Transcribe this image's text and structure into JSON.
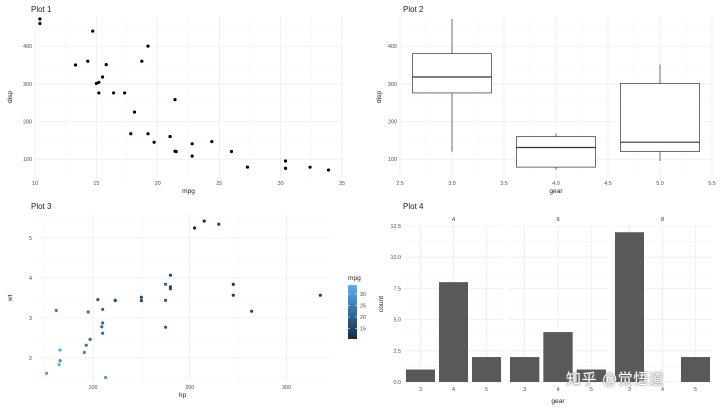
{
  "chart_data": [
    {
      "type": "scatter",
      "title": "Plot 1",
      "xlabel": "mpg",
      "ylabel": "disp",
      "xlim": [
        10,
        35
      ],
      "ylim": [
        50,
        480
      ],
      "xticks": [
        10,
        15,
        20,
        25,
        30,
        35
      ],
      "yticks": [
        100,
        200,
        300,
        400
      ],
      "point_color": "#000000",
      "points": [
        [
          21.0,
          160
        ],
        [
          21.0,
          160
        ],
        [
          22.8,
          108
        ],
        [
          21.4,
          258
        ],
        [
          18.7,
          360
        ],
        [
          18.1,
          225
        ],
        [
          14.3,
          360
        ],
        [
          24.4,
          146.7
        ],
        [
          22.8,
          140.8
        ],
        [
          19.2,
          167.6
        ],
        [
          17.8,
          167.6
        ],
        [
          16.4,
          275.8
        ],
        [
          17.3,
          275.8
        ],
        [
          15.2,
          275.8
        ],
        [
          10.4,
          472
        ],
        [
          10.4,
          460
        ],
        [
          14.7,
          440
        ],
        [
          32.4,
          78.7
        ],
        [
          30.4,
          75.7
        ],
        [
          33.9,
          71.1
        ],
        [
          21.5,
          120.1
        ],
        [
          15.5,
          318
        ],
        [
          15.2,
          304
        ],
        [
          13.3,
          350
        ],
        [
          19.2,
          400
        ],
        [
          27.3,
          79
        ],
        [
          26.0,
          120.3
        ],
        [
          30.4,
          95.1
        ],
        [
          15.8,
          351
        ],
        [
          19.7,
          145
        ],
        [
          15.0,
          301
        ],
        [
          21.4,
          121
        ]
      ]
    },
    {
      "type": "boxplot",
      "title": "Plot 2",
      "xlabel": "gear",
      "ylabel": "disp",
      "xlim": [
        2.5,
        5.5
      ],
      "ylim": [
        50,
        480
      ],
      "xticks": [
        2.5,
        3.0,
        3.5,
        4.0,
        4.5,
        5.0,
        5.5
      ],
      "xtick_labels": [
        "2.5",
        "3.0",
        "3.5",
        "4.0",
        "4.5",
        "5.0",
        "5.5"
      ],
      "yticks": [
        100,
        200,
        300,
        400
      ],
      "boxes": [
        {
          "x": 3,
          "min": 120.1,
          "q1": 275.8,
          "median": 318,
          "q3": 380,
          "max": 472
        },
        {
          "x": 4,
          "min": 71.1,
          "q1": 78.9,
          "median": 130.9,
          "q3": 160,
          "max": 167.6
        },
        {
          "x": 5,
          "min": 95.1,
          "q1": 120.3,
          "median": 145,
          "q3": 301,
          "max": 351
        }
      ]
    },
    {
      "type": "scatter",
      "title": "Plot 3",
      "xlabel": "hp",
      "ylabel": "wt",
      "xlim": [
        40,
        345
      ],
      "ylim": [
        1.4,
        5.6
      ],
      "xticks": [
        100,
        200,
        300
      ],
      "yticks": [
        2,
        3,
        4,
        5
      ],
      "legend": {
        "title": "mpg",
        "ticks": [
          15,
          20,
          25,
          30
        ],
        "range": [
          10.4,
          33.9
        ],
        "color_low": "#132b43",
        "color_high": "#56b1f7"
      },
      "points": [
        [
          110,
          2.62,
          21.0
        ],
        [
          110,
          2.875,
          21.0
        ],
        [
          93,
          2.32,
          22.8
        ],
        [
          110,
          3.215,
          21.4
        ],
        [
          175,
          3.44,
          18.7
        ],
        [
          105,
          3.46,
          18.1
        ],
        [
          245,
          3.57,
          14.3
        ],
        [
          62,
          3.19,
          24.4
        ],
        [
          95,
          3.15,
          22.8
        ],
        [
          123,
          3.44,
          19.2
        ],
        [
          123,
          3.44,
          17.8
        ],
        [
          180,
          4.07,
          16.4
        ],
        [
          180,
          3.73,
          17.3
        ],
        [
          180,
          3.78,
          15.2
        ],
        [
          205,
          5.25,
          10.4
        ],
        [
          215,
          5.424,
          10.4
        ],
        [
          230,
          5.345,
          14.7
        ],
        [
          66,
          2.2,
          32.4
        ],
        [
          52,
          1.615,
          30.4
        ],
        [
          65,
          1.835,
          33.9
        ],
        [
          97,
          2.465,
          21.5
        ],
        [
          150,
          3.52,
          15.5
        ],
        [
          150,
          3.435,
          15.2
        ],
        [
          245,
          3.84,
          13.3
        ],
        [
          175,
          3.845,
          19.2
        ],
        [
          66,
          1.935,
          27.3
        ],
        [
          91,
          2.14,
          26.0
        ],
        [
          113,
          1.513,
          30.4
        ],
        [
          264,
          3.17,
          15.8
        ],
        [
          175,
          2.77,
          19.7
        ],
        [
          335,
          3.57,
          15.0
        ],
        [
          109,
          2.78,
          21.4
        ]
      ]
    },
    {
      "type": "bar",
      "title": "Plot 4",
      "xlabel": "gear",
      "ylabel": "count",
      "ylim": [
        0,
        12.5
      ],
      "yticks": [
        0.0,
        2.5,
        5.0,
        7.5,
        10.0,
        12.5
      ],
      "ytick_labels": [
        "0.0",
        "2.5",
        "5.0",
        "7.5",
        "10.0",
        "12.5"
      ],
      "bar_color": "#595959",
      "facets": [
        {
          "strip": "4",
          "categories": [
            "3",
            "4",
            "5"
          ],
          "values": [
            1,
            8,
            2
          ]
        },
        {
          "strip": "6",
          "categories": [
            "3",
            "4",
            "5"
          ],
          "values": [
            2,
            4,
            1
          ]
        },
        {
          "strip": "8",
          "categories": [
            "3",
            "4",
            "5"
          ],
          "values": [
            12,
            0,
            2
          ]
        }
      ]
    }
  ],
  "watermark": "知乎 @觉悟道"
}
